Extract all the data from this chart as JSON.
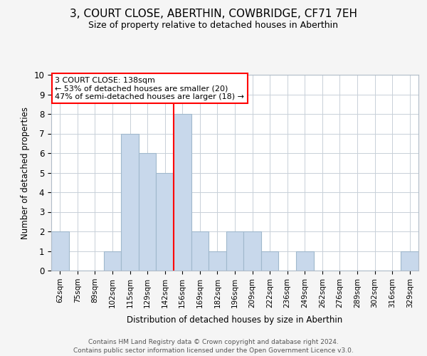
{
  "title": "3, COURT CLOSE, ABERTHIN, COWBRIDGE, CF71 7EH",
  "subtitle": "Size of property relative to detached houses in Aberthin",
  "xlabel": "Distribution of detached houses by size in Aberthin",
  "ylabel": "Number of detached properties",
  "bin_labels": [
    "62sqm",
    "75sqm",
    "89sqm",
    "102sqm",
    "115sqm",
    "129sqm",
    "142sqm",
    "156sqm",
    "169sqm",
    "182sqm",
    "196sqm",
    "209sqm",
    "222sqm",
    "236sqm",
    "249sqm",
    "262sqm",
    "276sqm",
    "289sqm",
    "302sqm",
    "316sqm",
    "329sqm"
  ],
  "bar_heights": [
    2,
    0,
    0,
    1,
    7,
    6,
    5,
    8,
    2,
    1,
    2,
    2,
    1,
    0,
    1,
    0,
    0,
    0,
    0,
    0,
    1
  ],
  "bar_color": "#c8d8eb",
  "bar_edge_color": "#a0b8cc",
  "redline_index": 6,
  "ylim": [
    0,
    10
  ],
  "annotation_title": "3 COURT CLOSE: 138sqm",
  "annotation_line1": "← 53% of detached houses are smaller (20)",
  "annotation_line2": "47% of semi-detached houses are larger (18) →",
  "footer1": "Contains HM Land Registry data © Crown copyright and database right 2024.",
  "footer2": "Contains public sector information licensed under the Open Government Licence v3.0.",
  "background_color": "#f5f5f5",
  "plot_bg_color": "#ffffff",
  "grid_color": "#c8d0d8",
  "title_fontsize": 11,
  "subtitle_fontsize": 9
}
